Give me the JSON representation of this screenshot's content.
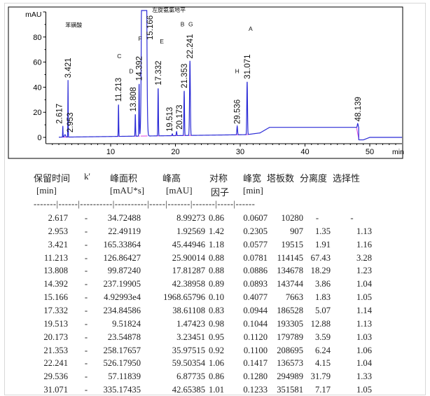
{
  "chart_data": {
    "type": "line",
    "xlabel": "min",
    "ylabel": "mAU",
    "xlim": [
      0,
      55
    ],
    "ylim": [
      -5,
      100
    ],
    "x_ticks": [
      10,
      20,
      30,
      40,
      50
    ],
    "y_ticks": [
      0,
      20,
      40,
      60,
      80
    ],
    "grid": false,
    "colors": {
      "signal": "#2b2bd6",
      "baseline": "#e040e0",
      "frame": "#000000"
    },
    "peaks": [
      {
        "rt": 2.617,
        "label": "2.617",
        "height": 8.99,
        "width": 0.0607
      },
      {
        "rt": 2.953,
        "label": "2.953",
        "height": 1.93,
        "width": 0.2305
      },
      {
        "rt": 3.421,
        "label": "3.421",
        "height": 45.45,
        "width": 0.0577
      },
      {
        "rt": 11.213,
        "label": "11.213",
        "height": 25.9,
        "width": 0.0781
      },
      {
        "rt": 13.808,
        "label": "13.808",
        "height": 17.81,
        "width": 0.0886
      },
      {
        "rt": 14.392,
        "label": "14.392",
        "height": 42.39,
        "width": 0.0893
      },
      {
        "rt": 15.166,
        "label": "15.166",
        "height": 1968.66,
        "width": 0.4077
      },
      {
        "rt": 17.332,
        "label": "17.332",
        "height": 38.61,
        "width": 0.0944
      },
      {
        "rt": 19.513,
        "label": "19.513",
        "height": 1.47,
        "width": 0.1044
      },
      {
        "rt": 20.173,
        "label": "20.173",
        "height": 3.23,
        "width": 0.112
      },
      {
        "rt": 21.353,
        "label": "21.353",
        "height": 35.98,
        "width": 0.11
      },
      {
        "rt": 22.241,
        "label": "22.241",
        "height": 59.5,
        "width": 0.1417
      },
      {
        "rt": 29.536,
        "label": "29.536",
        "height": 6.88,
        "width": 0.128
      },
      {
        "rt": 31.071,
        "label": "31.071",
        "height": 42.65,
        "width": 0.1233
      },
      {
        "rt": 48.139,
        "label": "48.139",
        "height": 3,
        "width": 0.15
      }
    ],
    "annotations": [
      {
        "text": "苯磺酸",
        "rt": 3.0,
        "y": 88
      },
      {
        "text": "C",
        "rt": 11.0,
        "y": 63
      },
      {
        "text": "D",
        "rt": 13.5,
        "y": 51
      },
      {
        "text": "F",
        "rt": 14.6,
        "y": 77
      },
      {
        "text": "左旋氨氯地平",
        "rt": 16.4,
        "y": 100
      },
      {
        "text": "E",
        "rt": 17.6,
        "y": 75
      },
      {
        "text": "B",
        "rt": 21.0,
        "y": 87
      },
      {
        "text": "G",
        "rt": 22.0,
        "y": 87
      },
      {
        "text": "H",
        "rt": 29.2,
        "y": 51
      },
      {
        "text": "A",
        "rt": 31.3,
        "y": 85
      }
    ]
  },
  "table": {
    "headers": [
      "保留时间",
      "k'",
      "峰面积",
      "峰高",
      "对称",
      "峰宽",
      "塔板数",
      "分离度",
      "选择性"
    ],
    "units": [
      "[min]",
      "[mAU*s]",
      "[mAU]",
      "因子",
      "[min]"
    ],
    "separator": "-------|------|----------|----------|-----|-------|-------|-----|------",
    "rows": [
      [
        "2.617",
        "-",
        "34.72488",
        "8.99273",
        "0.86",
        "0.0607",
        "10280",
        "-",
        "-"
      ],
      [
        "2.953",
        "-",
        "22.49119",
        "1.92569",
        "1.42",
        "0.2305",
        "907",
        "1.35",
        "1.13"
      ],
      [
        "3.421",
        "-",
        "165.33864",
        "45.44946",
        "1.18",
        "0.0577",
        "19515",
        "1.91",
        "1.16"
      ],
      [
        "11.213",
        "-",
        "126.86427",
        "25.90014",
        "0.88",
        "0.0781",
        "114145",
        "67.43",
        "3.28"
      ],
      [
        "13.808",
        "-",
        "99.87240",
        "17.81287",
        "0.88",
        "0.0886",
        "134678",
        "18.29",
        "1.23"
      ],
      [
        "14.392",
        "-",
        "237.19905",
        "42.38958",
        "0.89",
        "0.0893",
        "143744",
        "3.86",
        "1.04"
      ],
      [
        "15.166",
        "-",
        "4.92993e4",
        "1968.65796",
        "0.10",
        "0.4077",
        "7663",
        "1.83",
        "1.05"
      ],
      [
        "17.332",
        "-",
        "234.84586",
        "38.61108",
        "0.83",
        "0.0944",
        "186528",
        "5.07",
        "1.14"
      ],
      [
        "19.513",
        "-",
        "9.51824",
        "1.47423",
        "0.98",
        "0.1044",
        "193305",
        "12.88",
        "1.13"
      ],
      [
        "20.173",
        "-",
        "23.54878",
        "3.23451",
        "0.95",
        "0.1120",
        "179789",
        "3.59",
        "1.03"
      ],
      [
        "21.353",
        "-",
        "258.17657",
        "35.97515",
        "0.92",
        "0.1100",
        "208695",
        "6.24",
        "1.06"
      ],
      [
        "22.241",
        "-",
        "526.17950",
        "59.50354",
        "1.06",
        "0.1417",
        "136573",
        "4.15",
        "1.04"
      ],
      [
        "29.536",
        "-",
        "57.11839",
        "6.87735",
        "0.86",
        "0.1280",
        "294989",
        "31.79",
        "1.33"
      ],
      [
        "31.071",
        "-",
        "335.17435",
        "42.65385",
        "1.01",
        "0.1233",
        "351581",
        "7.17",
        "1.05"
      ]
    ]
  }
}
